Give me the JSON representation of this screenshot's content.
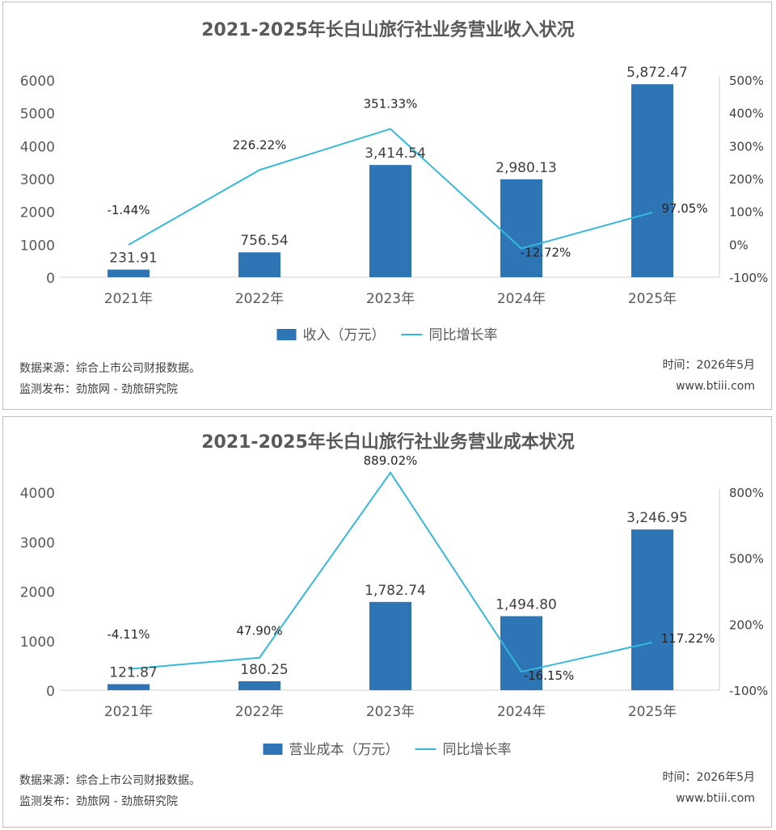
{
  "chart_data": [
    {
      "type": "bar",
      "title": "2021-2025年长白山旅行社业务营业收入状况",
      "categories": [
        "2021年",
        "2022年",
        "2023年",
        "2024年",
        "2025年"
      ],
      "series": [
        {
          "name": "收入（万元）",
          "type": "bar",
          "axis": "left",
          "values": [
            231.91,
            756.54,
            3414.54,
            2980.13,
            5872.47
          ],
          "labels": [
            "231.91",
            "756.54",
            "3,414.54",
            "2,980.13",
            "5,872.47"
          ],
          "color": "#2e75b6"
        },
        {
          "name": "同比增长率",
          "type": "line",
          "axis": "right",
          "values": [
            -1.44,
            226.22,
            351.33,
            -12.72,
            97.05
          ],
          "labels": [
            "-1.44%",
            "226.22%",
            "351.33%",
            "-12.72%",
            "97.05%"
          ],
          "color": "#35b8dc"
        }
      ],
      "y_left": {
        "min": 0,
        "max": 6000,
        "ticks": [
          "0",
          "1000",
          "2000",
          "3000",
          "4000",
          "5000",
          "6000"
        ]
      },
      "y_right": {
        "min": -100,
        "max": 500,
        "ticks": [
          "-100%",
          "0%",
          "100%",
          "200%",
          "300%",
          "400%",
          "500%"
        ]
      },
      "legend_position": "bottom",
      "grid": false
    },
    {
      "type": "bar",
      "title": "2021-2025年长白山旅行社业务营业成本状况",
      "categories": [
        "2021年",
        "2022年",
        "2023年",
        "2024年",
        "2025年"
      ],
      "series": [
        {
          "name": "营业成本（万元）",
          "type": "bar",
          "axis": "left",
          "values": [
            121.87,
            180.25,
            1782.74,
            1494.8,
            3246.95
          ],
          "labels": [
            "121.87",
            "180.25",
            "1,782.74",
            "1,494.80",
            "3,246.95"
          ],
          "color": "#2e75b6"
        },
        {
          "name": "同比增长率",
          "type": "line",
          "axis": "right",
          "values": [
            -4.11,
            47.9,
            889.02,
            -16.15,
            117.22
          ],
          "labels": [
            "-4.11%",
            "47.90%",
            "889.02%",
            "-16.15%",
            "117.22%"
          ],
          "color": "#35b8dc"
        }
      ],
      "y_left": {
        "min": 0,
        "max": 4000,
        "ticks": [
          "0",
          "1000",
          "2000",
          "3000",
          "4000"
        ]
      },
      "y_right": {
        "min": -100,
        "max": 800,
        "ticks": [
          "-100%",
          "200%",
          "500%",
          "800%"
        ]
      },
      "legend_position": "bottom",
      "grid": false
    }
  ],
  "footer": [
    {
      "source": "数据来源：综合上市公司财报数据。",
      "publisher": "监测发布：劲旅网 - 劲旅研究院",
      "time": "时间：2026年5月",
      "site": "www.btiii.com"
    },
    {
      "source": "数据来源：综合上市公司财报数据。",
      "publisher": "监测发布：劲旅网 - 劲旅研究院",
      "time": "时间：2026年5月",
      "site": "www.btiii.com"
    }
  ]
}
